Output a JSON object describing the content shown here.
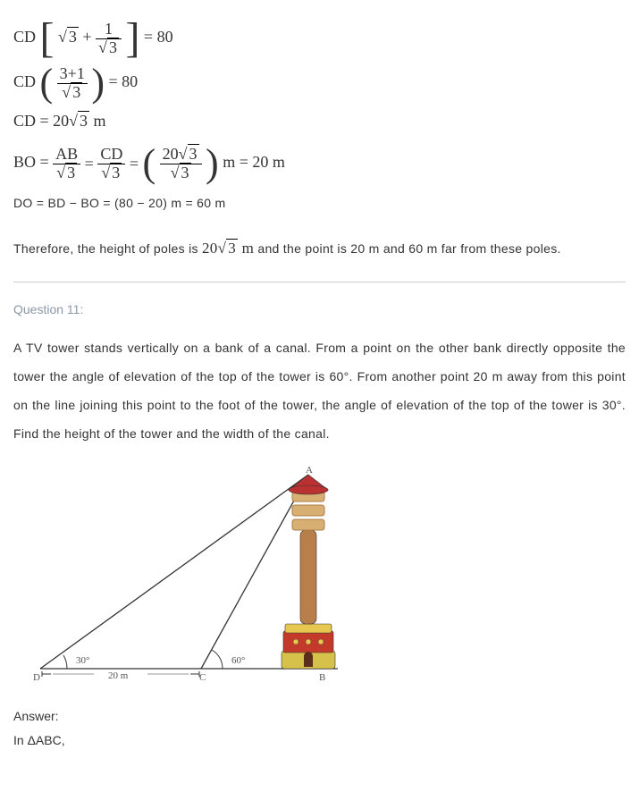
{
  "eq1_lhs": "CD",
  "eq1_sqrt3": "3",
  "eq1_plus": " + ",
  "eq1_num": "1",
  "eq1_den_sqrt": "3",
  "eq1_rhs": " = 80",
  "eq2_lhs": "CD",
  "eq2_num": "3+1",
  "eq2_den_sqrt": "3",
  "eq2_rhs": " = 80",
  "eq3": "CD = 20",
  "eq3_sqrt": "3",
  "eq3_unit": " m",
  "eq4_lhs": "BO = ",
  "eq4_ab": "AB",
  "eq4_cd": "CD",
  "eq4_den_sqrt": "3",
  "eq4_val": "20",
  "eq4_val_sqrt": "3",
  "eq4_unit": "m = 20 m",
  "line_do": "DO = BD − BO = (80 − 20) m = 60 m",
  "h_prefix": "Therefore, the height of poles is",
  "h_val": "20",
  "h_sqrt": "3",
  "h_unit": "m",
  "h_suffix": "and the point is 20 m and 60 m far from these poles.",
  "q_head": "Question 11:",
  "q_text": "A TV tower stands vertically on a bank of a canal. From a point on the other bank directly opposite the tower the angle of elevation of the top of the tower is 60°. From another point 20 m away from this point on the line joining this point to the foot of the tower, the angle of elevation of the top of the tower is 30°. Find the height of the tower and the width of the canal.",
  "ans_label": "Answer:",
  "ans_line1": "In ΔABC,",
  "dia": {
    "A": "A",
    "B": "B",
    "C": "C",
    "D": "D",
    "ang_30": "30°",
    "ang_60": "60°",
    "dc": "20 m",
    "colors": {
      "line": "#333",
      "roof": "#bb3131",
      "cone": "#bb3131",
      "ring_light": "#d8af72",
      "ring_dark": "#a87d44",
      "shaft": "#b87f4a",
      "base_top": "#e6c850",
      "base_mid": "#c43a2a",
      "base_bot": "#d6c24a",
      "door": "#5a2e1a",
      "text": "#555"
    },
    "font": "11px"
  }
}
